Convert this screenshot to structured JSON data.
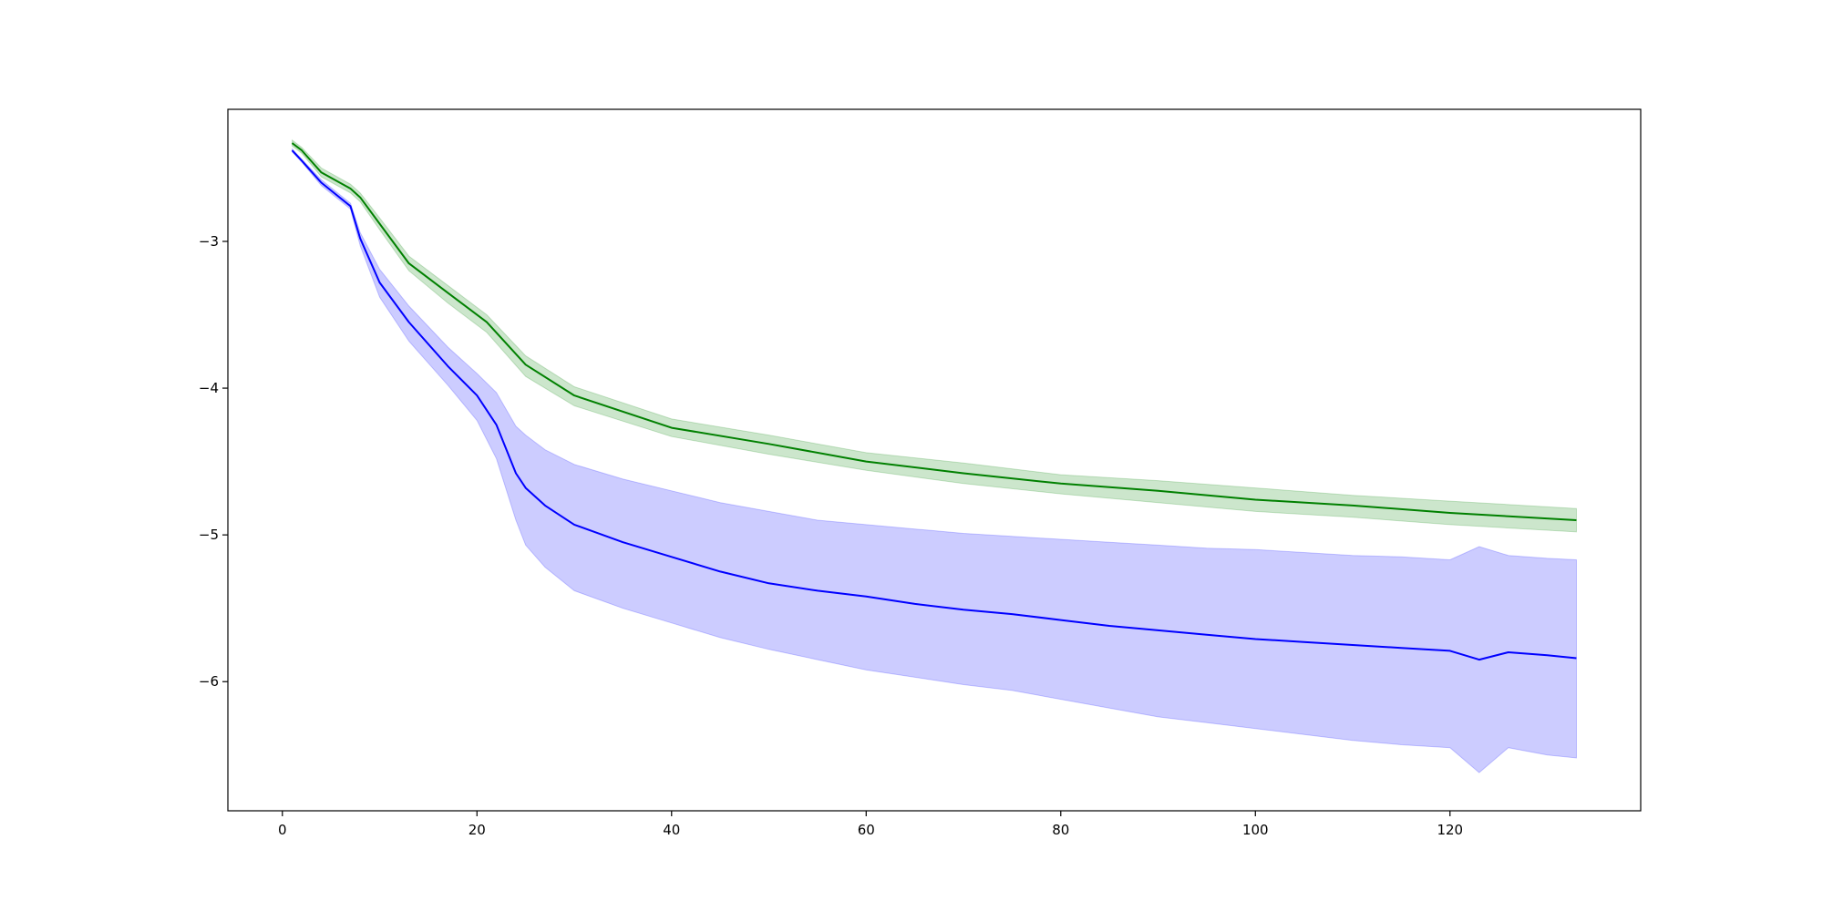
{
  "chart_data": {
    "type": "line",
    "title": "",
    "xlabel": "",
    "ylabel": "",
    "xlim": [
      -5.6,
      139.6
    ],
    "ylim": [
      -6.88,
      -2.1
    ],
    "xticks": [
      0,
      20,
      40,
      60,
      80,
      100,
      120
    ],
    "yticks": [
      -3,
      -4,
      -5,
      -6
    ],
    "xtick_labels": [
      "0",
      "20",
      "40",
      "60",
      "80",
      "100",
      "120"
    ],
    "ytick_labels": [
      "−3",
      "−4",
      "−5",
      "−6"
    ],
    "grid": false,
    "legend": "none",
    "series": [
      {
        "color": "#008000",
        "band_color": "#008000",
        "band_opacity": 0.2,
        "x": [
          1,
          2,
          4,
          7,
          8,
          10,
          13,
          17,
          21,
          25,
          30,
          40,
          50,
          60,
          70,
          80,
          90,
          100,
          110,
          120,
          133
        ],
        "y": [
          -2.33,
          -2.38,
          -2.53,
          -2.64,
          -2.7,
          -2.88,
          -3.15,
          -3.35,
          -3.55,
          -3.84,
          -4.05,
          -4.27,
          -4.38,
          -4.5,
          -4.58,
          -4.65,
          -4.7,
          -4.76,
          -4.8,
          -4.85,
          -4.9
        ],
        "lower": [
          -2.35,
          -2.4,
          -2.56,
          -2.67,
          -2.73,
          -2.92,
          -3.2,
          -3.42,
          -3.62,
          -3.92,
          -4.12,
          -4.33,
          -4.45,
          -4.56,
          -4.65,
          -4.72,
          -4.78,
          -4.84,
          -4.88,
          -4.93,
          -4.98
        ],
        "upper": [
          -2.31,
          -2.36,
          -2.5,
          -2.61,
          -2.67,
          -2.84,
          -3.1,
          -3.3,
          -3.5,
          -3.78,
          -3.99,
          -4.21,
          -4.32,
          -4.44,
          -4.51,
          -4.59,
          -4.63,
          -4.68,
          -4.73,
          -4.77,
          -4.82
        ]
      },
      {
        "color": "#0000ff",
        "band_color": "#0000ff",
        "band_opacity": 0.2,
        "x": [
          1,
          2,
          4,
          7,
          8,
          10,
          13,
          17,
          20,
          22,
          24,
          25,
          27,
          30,
          35,
          40,
          45,
          50,
          55,
          60,
          65,
          70,
          75,
          80,
          85,
          90,
          95,
          100,
          105,
          110,
          115,
          120,
          123,
          126,
          130,
          133
        ],
        "y": [
          -2.38,
          -2.45,
          -2.6,
          -2.76,
          -2.98,
          -3.28,
          -3.55,
          -3.85,
          -4.05,
          -4.25,
          -4.58,
          -4.68,
          -4.8,
          -4.93,
          -5.05,
          -5.15,
          -5.25,
          -5.33,
          -5.38,
          -5.42,
          -5.47,
          -5.51,
          -5.54,
          -5.58,
          -5.62,
          -5.65,
          -5.68,
          -5.71,
          -5.73,
          -5.75,
          -5.77,
          -5.79,
          -5.85,
          -5.8,
          -5.82,
          -5.84
        ],
        "lower": [
          -2.39,
          -2.46,
          -2.62,
          -2.78,
          -3.03,
          -3.38,
          -3.68,
          -3.98,
          -4.22,
          -4.48,
          -4.9,
          -5.07,
          -5.22,
          -5.38,
          -5.5,
          -5.6,
          -5.7,
          -5.78,
          -5.85,
          -5.92,
          -5.97,
          -6.02,
          -6.06,
          -6.12,
          -6.18,
          -6.24,
          -6.28,
          -6.32,
          -6.36,
          -6.4,
          -6.43,
          -6.45,
          -6.62,
          -6.45,
          -6.5,
          -6.52
        ],
        "upper": [
          -2.37,
          -2.44,
          -2.58,
          -2.74,
          -2.94,
          -3.19,
          -3.44,
          -3.72,
          -3.9,
          -4.03,
          -4.26,
          -4.32,
          -4.42,
          -4.52,
          -4.62,
          -4.7,
          -4.78,
          -4.84,
          -4.9,
          -4.93,
          -4.96,
          -4.99,
          -5.01,
          -5.03,
          -5.05,
          -5.07,
          -5.09,
          -5.1,
          -5.12,
          -5.14,
          -5.15,
          -5.17,
          -5.08,
          -5.14,
          -5.16,
          -5.17
        ]
      }
    ]
  }
}
